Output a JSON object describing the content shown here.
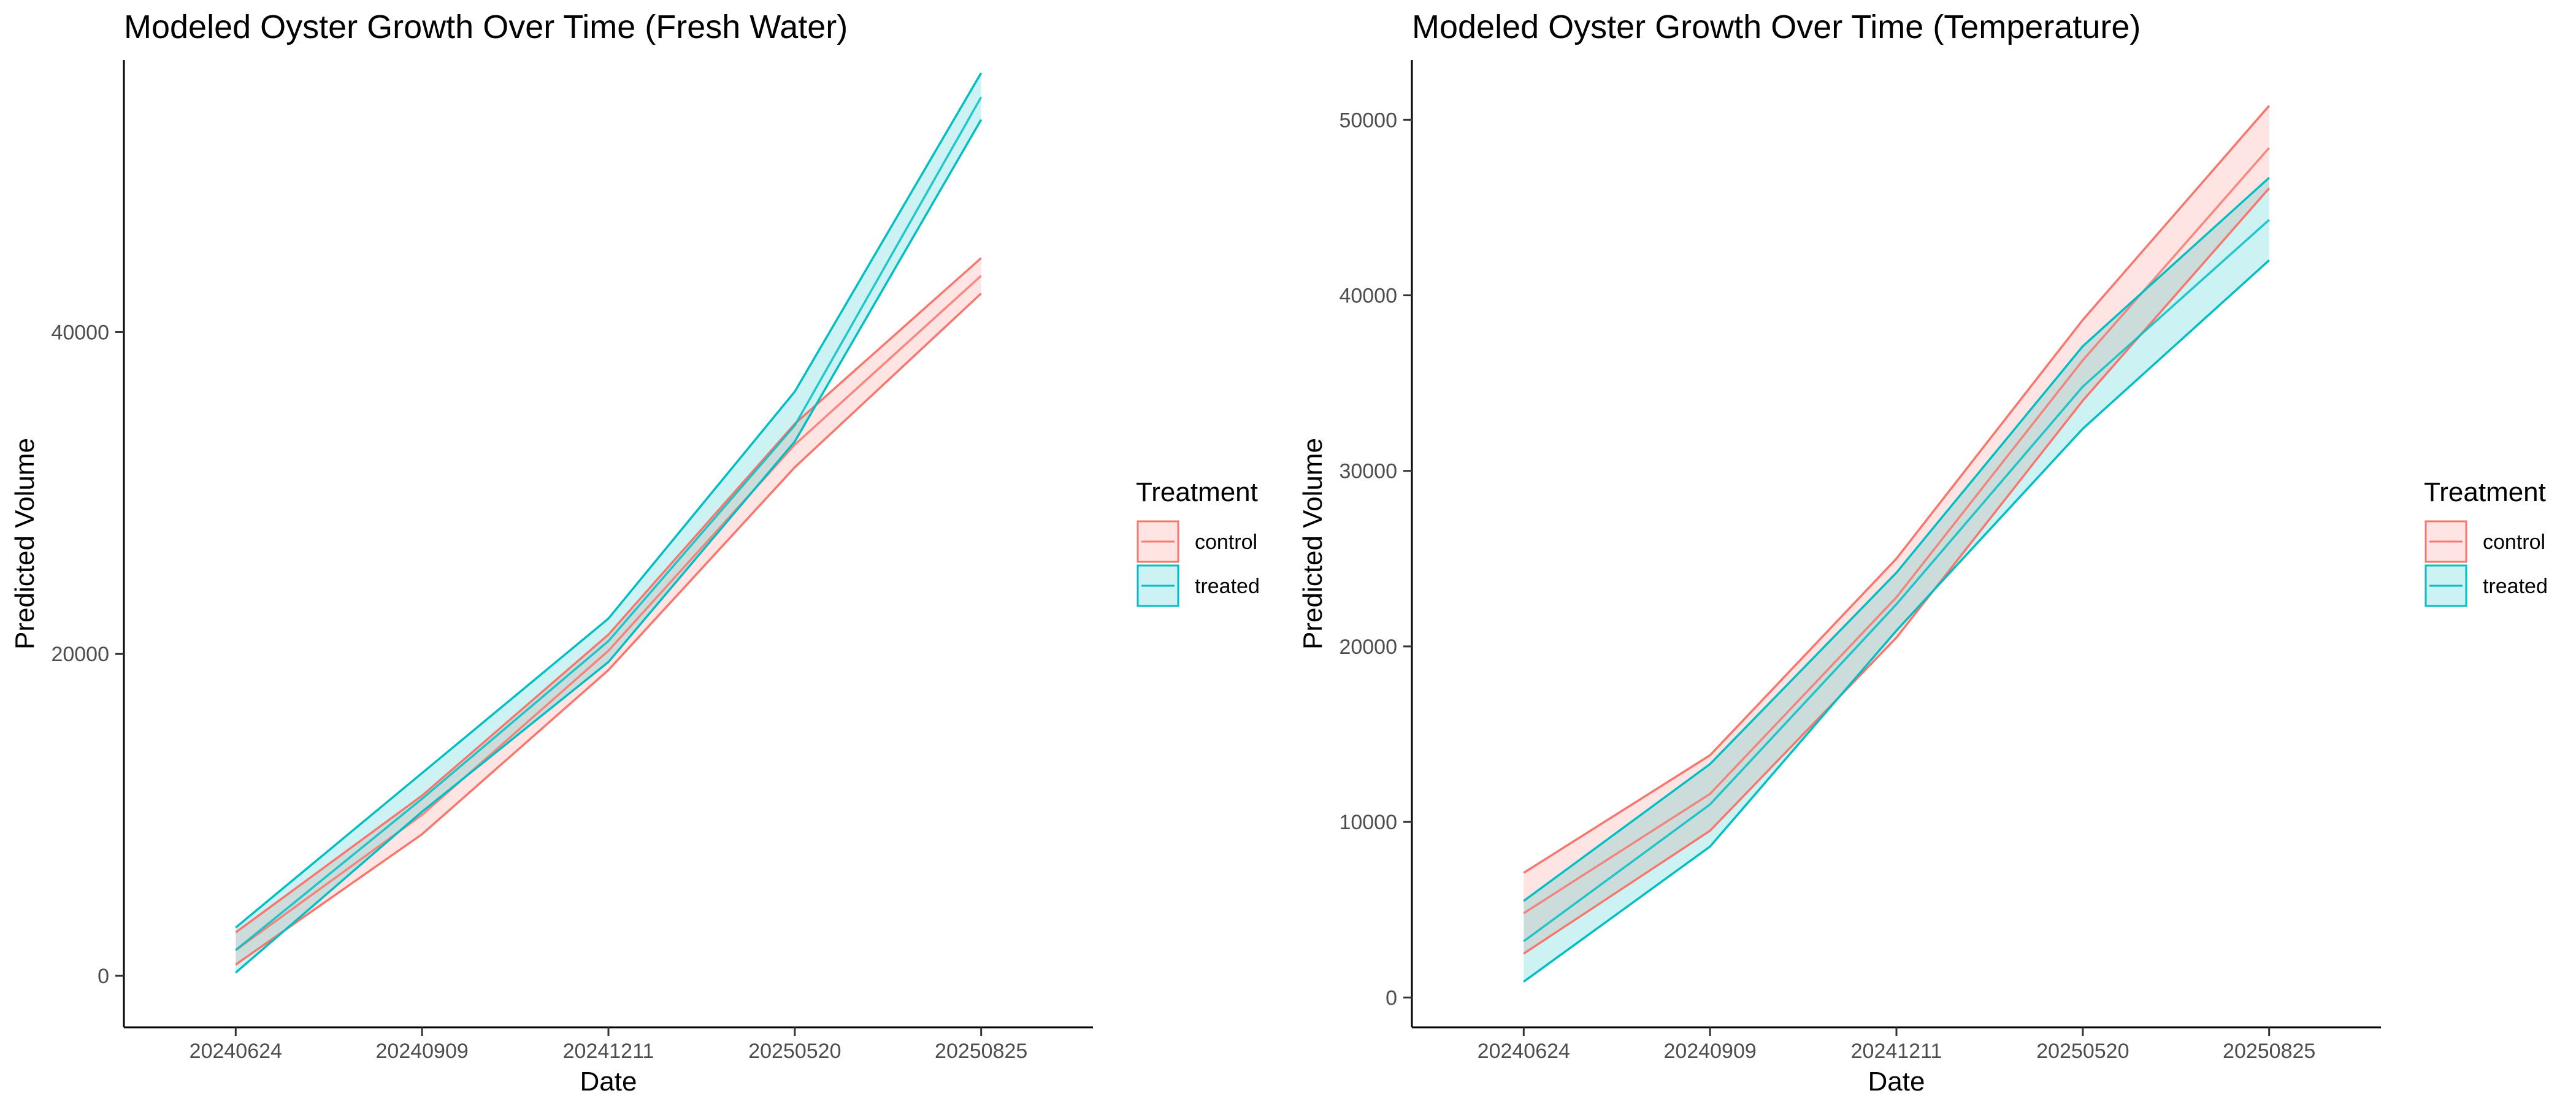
{
  "chart_data": [
    {
      "type": "line",
      "title": "Modeled Oyster Growth Over Time (Fresh Water)",
      "xlabel": "Date",
      "ylabel": "Predicted Volume",
      "categories": [
        "20240624",
        "20240909",
        "20241211",
        "20250520",
        "20250825"
      ],
      "ylim": [
        -3200,
        56900
      ],
      "yticks": [
        0,
        20000,
        40000
      ],
      "grid": false,
      "legend": {
        "title": "Treatment",
        "position": "right"
      },
      "series": [
        {
          "name": "control",
          "color": "#F8766D",
          "fill": "#FCDDDB",
          "fit": [
            1600,
            10000,
            20200,
            33000,
            43500
          ],
          "lower": [
            700,
            8800,
            19000,
            31600,
            42400
          ],
          "upper": [
            2700,
            11200,
            21200,
            34300,
            44600
          ]
        },
        {
          "name": "treated",
          "color": "#00BFC4",
          "fill": "#C7EFF0",
          "fit": [
            1600,
            11000,
            20800,
            34200,
            54600
          ],
          "lower": [
            200,
            10200,
            19500,
            33200,
            53200
          ],
          "upper": [
            3000,
            12600,
            22200,
            36300,
            56100
          ]
        }
      ]
    },
    {
      "type": "line",
      "title": "Modeled Oyster Growth Over Time (Temperature)",
      "xlabel": "Date",
      "ylabel": "Predicted Volume",
      "categories": [
        "20240624",
        "20240909",
        "20241211",
        "20250520",
        "20250825"
      ],
      "ylim": [
        -1700,
        53400
      ],
      "yticks": [
        0,
        10000,
        20000,
        30000,
        40000,
        50000
      ],
      "grid": false,
      "legend": {
        "title": "Treatment",
        "position": "right"
      },
      "series": [
        {
          "name": "control",
          "color": "#F8766D",
          "fill": "#FCDDDB",
          "fit": [
            4800,
            11600,
            22800,
            36300,
            48400
          ],
          "lower": [
            2500,
            9500,
            20500,
            34000,
            46100
          ],
          "upper": [
            7100,
            13800,
            25000,
            38600,
            50800
          ]
        },
        {
          "name": "treated",
          "color": "#00BFC4",
          "fill": "#C7EFF0",
          "fit": [
            3200,
            11000,
            22400,
            34800,
            44300
          ],
          "lower": [
            900,
            8600,
            20900,
            32400,
            42000
          ],
          "upper": [
            5500,
            13300,
            24200,
            37100,
            46700
          ]
        }
      ]
    }
  ]
}
